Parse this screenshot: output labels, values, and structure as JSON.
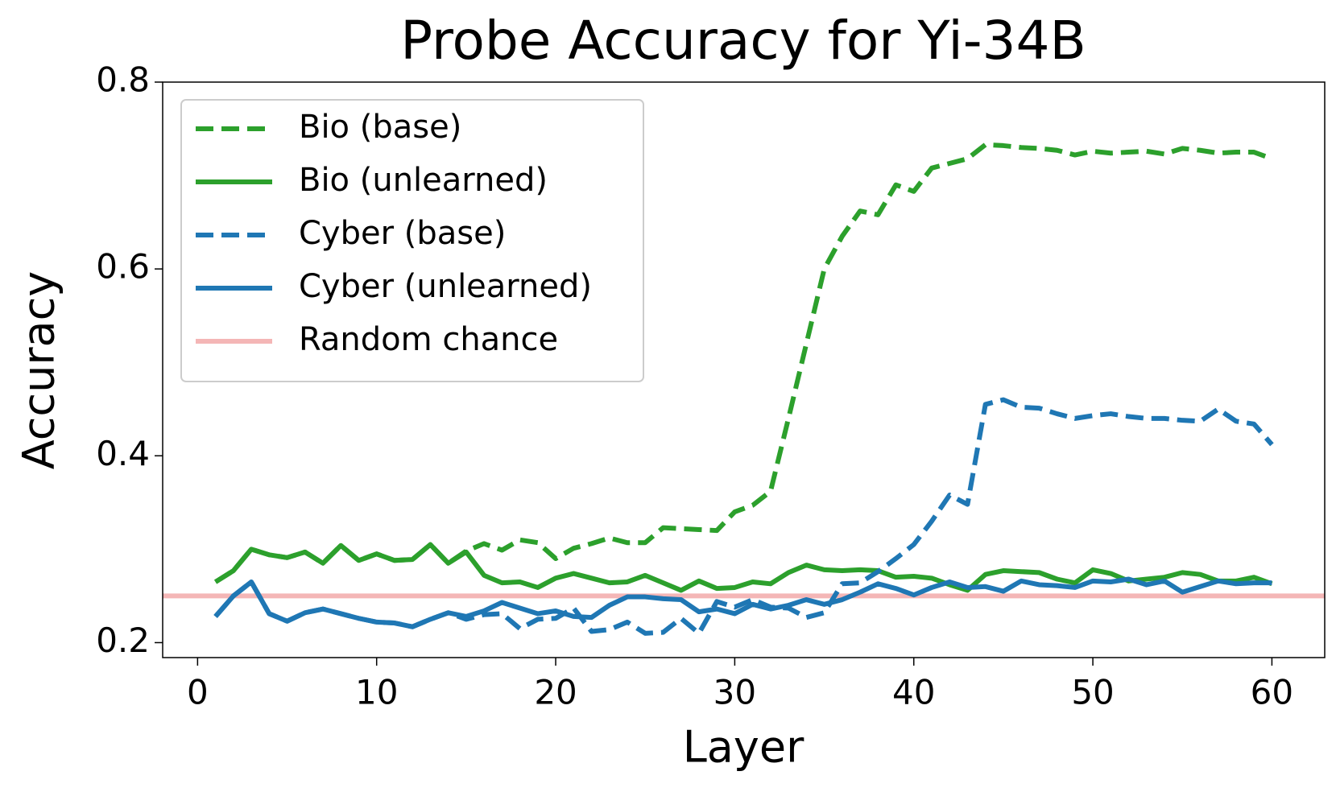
{
  "chart_data": {
    "type": "line",
    "title": "Probe Accuracy for Yi-34B",
    "x_label": "Layer",
    "y_label": "Accuracy",
    "x": [
      1,
      2,
      3,
      4,
      5,
      6,
      7,
      8,
      9,
      10,
      11,
      12,
      13,
      14,
      15,
      16,
      17,
      18,
      19,
      20,
      21,
      22,
      23,
      24,
      25,
      26,
      27,
      28,
      29,
      30,
      31,
      32,
      33,
      34,
      35,
      36,
      37,
      38,
      39,
      40,
      41,
      42,
      43,
      44,
      45,
      46,
      47,
      48,
      49,
      50,
      51,
      52,
      53,
      54,
      55,
      56,
      57,
      58,
      59,
      60
    ],
    "series": [
      {
        "name": "Bio (base)",
        "color": "#2ca02c",
        "dashed": true,
        "values": [
          0.265,
          0.277,
          0.3,
          0.294,
          0.291,
          0.297,
          0.285,
          0.304,
          0.288,
          0.295,
          0.288,
          0.289,
          0.305,
          0.285,
          0.298,
          0.306,
          0.299,
          0.31,
          0.307,
          0.29,
          0.301,
          0.306,
          0.312,
          0.307,
          0.307,
          0.323,
          0.322,
          0.321,
          0.32,
          0.34,
          0.347,
          0.362,
          0.44,
          0.52,
          0.6,
          0.635,
          0.662,
          0.658,
          0.69,
          0.683,
          0.708,
          0.713,
          0.718,
          0.733,
          0.732,
          0.73,
          0.729,
          0.727,
          0.722,
          0.726,
          0.724,
          0.725,
          0.726,
          0.723,
          0.729,
          0.727,
          0.724,
          0.725,
          0.725,
          0.718
        ]
      },
      {
        "name": "Bio (unlearned)",
        "color": "#2ca02c",
        "dashed": false,
        "values": [
          0.265,
          0.277,
          0.3,
          0.294,
          0.291,
          0.297,
          0.285,
          0.304,
          0.288,
          0.295,
          0.288,
          0.289,
          0.305,
          0.285,
          0.297,
          0.272,
          0.264,
          0.265,
          0.259,
          0.269,
          0.274,
          0.269,
          0.264,
          0.265,
          0.272,
          0.264,
          0.256,
          0.266,
          0.258,
          0.259,
          0.265,
          0.263,
          0.275,
          0.283,
          0.278,
          0.277,
          0.278,
          0.277,
          0.27,
          0.271,
          0.269,
          0.262,
          0.256,
          0.273,
          0.277,
          0.276,
          0.275,
          0.268,
          0.264,
          0.278,
          0.274,
          0.266,
          0.268,
          0.27,
          0.275,
          0.273,
          0.266,
          0.266,
          0.27,
          0.263
        ]
      },
      {
        "name": "Cyber (base)",
        "color": "#1f77b4",
        "dashed": true,
        "values": [
          0.228,
          0.25,
          0.265,
          0.231,
          0.223,
          0.232,
          0.236,
          0.231,
          0.226,
          0.222,
          0.221,
          0.217,
          0.225,
          0.232,
          0.225,
          0.23,
          0.231,
          0.215,
          0.225,
          0.226,
          0.237,
          0.212,
          0.214,
          0.222,
          0.21,
          0.211,
          0.226,
          0.21,
          0.244,
          0.238,
          0.246,
          0.238,
          0.237,
          0.227,
          0.232,
          0.263,
          0.264,
          0.276,
          0.29,
          0.305,
          0.33,
          0.358,
          0.348,
          0.455,
          0.46,
          0.452,
          0.451,
          0.445,
          0.44,
          0.443,
          0.445,
          0.442,
          0.44,
          0.44,
          0.438,
          0.437,
          0.45,
          0.437,
          0.434,
          0.412
        ]
      },
      {
        "name": "Cyber (unlearned)",
        "color": "#1f77b4",
        "dashed": false,
        "values": [
          0.228,
          0.25,
          0.265,
          0.231,
          0.223,
          0.232,
          0.236,
          0.231,
          0.226,
          0.222,
          0.221,
          0.217,
          0.225,
          0.232,
          0.228,
          0.234,
          0.243,
          0.237,
          0.231,
          0.234,
          0.228,
          0.227,
          0.24,
          0.249,
          0.249,
          0.247,
          0.246,
          0.233,
          0.236,
          0.231,
          0.241,
          0.236,
          0.24,
          0.246,
          0.241,
          0.246,
          0.254,
          0.263,
          0.258,
          0.251,
          0.259,
          0.265,
          0.259,
          0.26,
          0.255,
          0.266,
          0.262,
          0.261,
          0.259,
          0.266,
          0.265,
          0.268,
          0.262,
          0.266,
          0.254,
          0.26,
          0.266,
          0.263,
          0.264,
          0.264
        ]
      }
    ],
    "reference_lines": [
      {
        "name": "Random chance",
        "value": 0.25,
        "color": "#f4b6b6"
      }
    ],
    "xlim": [
      -1.95,
      62.95
    ],
    "xticks": [
      0,
      10,
      20,
      30,
      40,
      50,
      60
    ],
    "ylim": [
      0.184,
      0.8
    ],
    "yticks": [
      0.2,
      0.4,
      0.6,
      0.8
    ],
    "legend": "upper left"
  }
}
